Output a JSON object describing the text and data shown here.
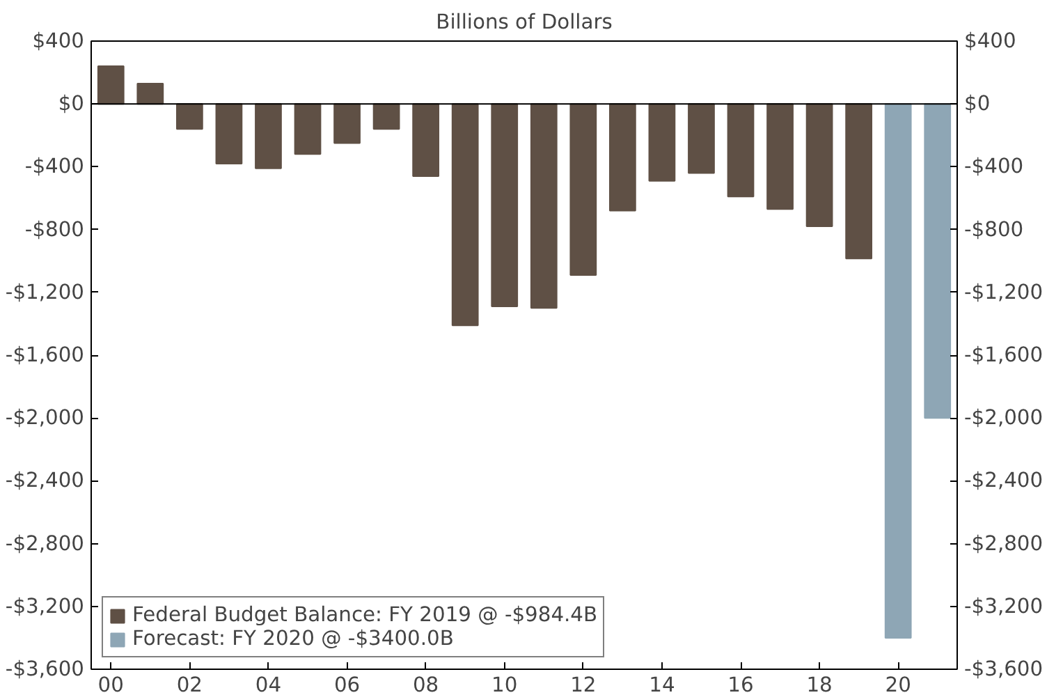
{
  "chart_data": {
    "type": "bar",
    "title": "Billions of Dollars",
    "categories": [
      "00",
      null,
      "02",
      null,
      "04",
      null,
      "06",
      null,
      "08",
      null,
      "10",
      null,
      "12",
      null,
      "14",
      null,
      "16",
      null,
      "18",
      null,
      "20",
      null
    ],
    "series": [
      {
        "name": "Federal Budget Balance: FY 2019 @ -$984.4B",
        "color": "#5f5045",
        "values": [
          240,
          130,
          -160,
          -380,
          -410,
          -320,
          -250,
          -160,
          -460,
          -1410,
          -1290,
          -1300,
          -1090,
          -680,
          -490,
          -440,
          -590,
          -670,
          -780,
          -984.4,
          null,
          null
        ]
      },
      {
        "name": "Forecast: FY 2020 @ -$3400.0B",
        "color": "#8ea6b5",
        "values": [
          null,
          null,
          null,
          null,
          null,
          null,
          null,
          null,
          null,
          null,
          null,
          null,
          null,
          null,
          null,
          null,
          null,
          null,
          null,
          null,
          -3400,
          -2000
        ]
      }
    ],
    "ylim": [
      -3600,
      400
    ],
    "yticks": [
      {
        "value": 400,
        "label": "$400"
      },
      {
        "value": 0,
        "label": "$0"
      },
      {
        "value": -400,
        "label": "-$400"
      },
      {
        "value": -800,
        "label": "-$800"
      },
      {
        "value": -1200,
        "label": "-$1,200"
      },
      {
        "value": -1600,
        "label": "-$1,600"
      },
      {
        "value": -2000,
        "label": "-$2,000"
      },
      {
        "value": -2400,
        "label": "-$2,400"
      },
      {
        "value": -2800,
        "label": "-$2,800"
      },
      {
        "value": -3200,
        "label": "-$3,200"
      },
      {
        "value": -3600,
        "label": "-$3,600"
      }
    ],
    "y2lim": [
      -3600,
      400
    ],
    "y2ticks": [
      {
        "value": 400,
        "label": "$400"
      },
      {
        "value": 0,
        "label": "$0"
      },
      {
        "value": -400,
        "label": "-$400"
      },
      {
        "value": -800,
        "label": "-$800"
      },
      {
        "value": -1200,
        "label": "-$1,200"
      },
      {
        "value": -1600,
        "label": "-$1,600"
      },
      {
        "value": -2000,
        "label": "-$2,000"
      },
      {
        "value": -2400,
        "label": "-$2,400"
      },
      {
        "value": -2800,
        "label": "-$2,800"
      },
      {
        "value": -3200,
        "label": "-$3,200"
      },
      {
        "value": -3600,
        "label": "-$3,600"
      }
    ],
    "ref_lines": [
      {
        "axis": "y",
        "value": 0,
        "color": "#000000"
      }
    ],
    "legend": "bottom left"
  }
}
